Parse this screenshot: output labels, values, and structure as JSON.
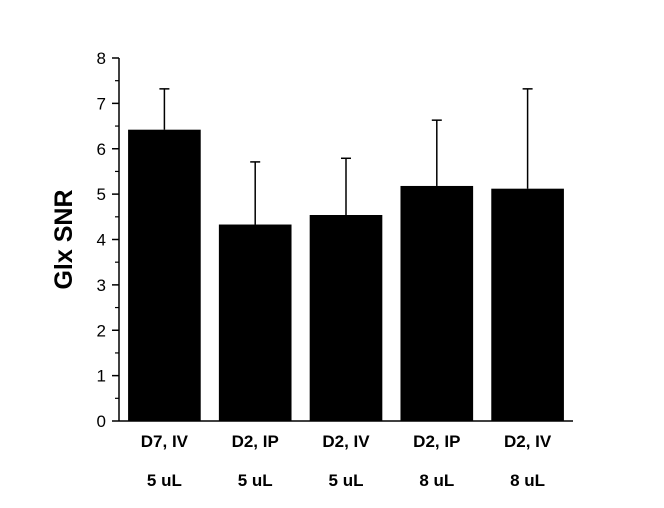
{
  "chart_data": {
    "type": "bar",
    "title": "",
    "xlabel": "",
    "ylabel": "Glx SNR",
    "ylim": [
      0,
      8
    ],
    "yticks": [
      0,
      1,
      2,
      3,
      4,
      5,
      6,
      7,
      8
    ],
    "grid": false,
    "categories": [
      {
        "line1": "D7, IV",
        "line2": "5 uL"
      },
      {
        "line1": "D2, IP",
        "line2": "5 uL"
      },
      {
        "line1": "D2, IV",
        "line2": "5 uL"
      },
      {
        "line1": "D2, IP",
        "line2": "8 uL"
      },
      {
        "line1": "D2, IV",
        "line2": "8 uL"
      }
    ],
    "values": [
      6.42,
      4.33,
      4.54,
      5.18,
      5.12
    ],
    "error_upper": [
      0.9,
      1.38,
      1.25,
      1.45,
      2.2
    ],
    "bar_color": "#000000"
  }
}
